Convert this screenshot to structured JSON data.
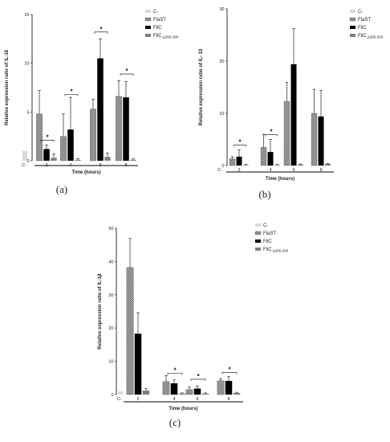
{
  "legend": {
    "items": [
      {
        "name": "C-",
        "sub": "",
        "color": "#d9d9d9",
        "pattern": "solid"
      },
      {
        "name": "FlaST",
        "sub": "",
        "color": "#ffffff",
        "pattern": "check"
      },
      {
        "name": "FliC",
        "sub": "",
        "color": "#000000",
        "pattern": "solid"
      },
      {
        "name": "FliC",
        "sub": "Δ286-290",
        "color": "#808080",
        "pattern": "solid"
      }
    ]
  },
  "chart_data": [
    {
      "type": "bar",
      "panel_label": "(a)",
      "ylabel": "Relative expression ratio of IL-18",
      "xlabel": "Time (hours)",
      "ylim": [
        0,
        15
      ],
      "yticks": [
        0,
        5,
        10,
        15
      ],
      "control": {
        "label": "C-",
        "value": 1.0,
        "err": 0
      },
      "categories": [
        "2",
        "4",
        "6",
        "8"
      ],
      "series": [
        {
          "name": "FlaST",
          "values": [
            4.8,
            2.5,
            5.3,
            6.6
          ],
          "errors": [
            2.4,
            2.3,
            1.0,
            1.6
          ]
        },
        {
          "name": "FliC",
          "values": [
            1.2,
            3.2,
            10.5,
            6.5
          ],
          "errors": [
            0.4,
            3.3,
            2.0,
            1.6
          ]
        },
        {
          "name": "FliC Δ286-290",
          "values": [
            0.3,
            0.1,
            0.4,
            0.1
          ],
          "errors": [
            0.4,
            0.1,
            0.4,
            0.1
          ]
        }
      ],
      "significance": [
        {
          "category_index": 0,
          "pair": [
            1,
            2
          ],
          "y": 2.1
        },
        {
          "category_index": 1,
          "pair": [
            1,
            2
          ],
          "y": 6.8
        },
        {
          "category_index": 2,
          "pair": [
            1,
            2
          ],
          "y": 13.2
        },
        {
          "category_index": 3,
          "pair": [
            1,
            2
          ],
          "y": 8.9
        }
      ],
      "significance_mark": "*"
    },
    {
      "type": "bar",
      "panel_label": "(b)",
      "ylabel": "Relative expression ratio of IL- 33",
      "xlabel": "Time (hours)",
      "ylim": [
        0,
        30
      ],
      "yticks": [
        0,
        10,
        20,
        30
      ],
      "control": {
        "label": "C-",
        "value": 0.1,
        "err": 0
      },
      "categories": [
        "2",
        "4",
        "6",
        "8"
      ],
      "series": [
        {
          "name": "FlaST",
          "values": [
            1.3,
            3.5,
            12.3,
            10.0
          ],
          "errors": [
            0.4,
            2.5,
            3.6,
            4.6
          ]
        },
        {
          "name": "FliC",
          "values": [
            1.7,
            2.6,
            19.4,
            9.4
          ],
          "errors": [
            1.3,
            2.4,
            6.8,
            5.0
          ]
        },
        {
          "name": "FliC Δ286-290",
          "values": [
            0.1,
            0.1,
            0.2,
            0.3
          ],
          "errors": [
            0.1,
            0.1,
            0.1,
            0.1
          ]
        }
      ],
      "significance": [
        {
          "category_index": 0,
          "pair": [
            1,
            2
          ],
          "y": 3.9
        },
        {
          "category_index": 1,
          "pair": [
            1,
            2
          ],
          "y": 5.9
        }
      ],
      "significance_mark": "*"
    },
    {
      "type": "bar",
      "panel_label": "(c)",
      "ylabel": "Relative expression ratio of IL-1β",
      "xlabel": "Time (hours)",
      "ylim": [
        0,
        50
      ],
      "yticks": [
        0,
        10,
        20,
        30,
        40,
        50
      ],
      "control": {
        "label": "C-",
        "value": 1.0,
        "err": 0
      },
      "categories": [
        "2",
        "4",
        "6",
        "8"
      ],
      "series": [
        {
          "name": "FlaST",
          "values": [
            38.2,
            3.9,
            1.5,
            4.2
          ],
          "errors": [
            8.7,
            1.8,
            0.8,
            0.6
          ]
        },
        {
          "name": "FliC",
          "values": [
            18.3,
            3.4,
            1.8,
            4.1
          ],
          "errors": [
            6.3,
            1.0,
            0.8,
            1.3
          ]
        },
        {
          "name": "FliC Δ286-290",
          "values": [
            1.2,
            0.3,
            0.3,
            0.5
          ],
          "errors": [
            0.6,
            0.2,
            0.2,
            0.2
          ]
        }
      ],
      "significance": [
        {
          "category_index": 1,
          "pair": [
            1,
            2
          ],
          "y": 6.4
        },
        {
          "category_index": 2,
          "pair": [
            1,
            2
          ],
          "y": 4.6
        },
        {
          "category_index": 3,
          "pair": [
            1,
            2
          ],
          "y": 6.6
        }
      ],
      "significance_mark": "*"
    }
  ]
}
